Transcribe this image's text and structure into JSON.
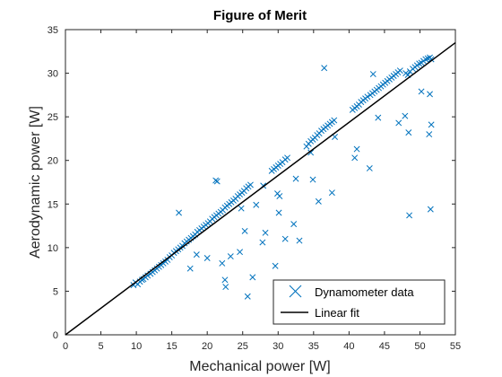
{
  "chart_data": {
    "type": "scatter",
    "title": "Figure of Merit",
    "xlabel": "Mechanical power [W]",
    "ylabel": "Aerodynamic power [W]",
    "xlim": [
      0,
      55
    ],
    "ylim": [
      0,
      35
    ],
    "xticks": [
      "0",
      "5",
      "10",
      "15",
      "20",
      "25",
      "30",
      "35",
      "40",
      "45",
      "50",
      "55"
    ],
    "yticks": [
      "0",
      "5",
      "10",
      "15",
      "20",
      "25",
      "30",
      "35"
    ],
    "grid": false,
    "legend_position": "bottom-right",
    "colors": {
      "scatter": "#0072BD",
      "fit": "#000000",
      "axes": "#262626"
    },
    "series": [
      {
        "name": "Dynamometer data",
        "type": "scatter",
        "marker": "x",
        "points": [
          [
            9.6,
            5.7
          ],
          [
            9.9,
            6.0
          ],
          [
            10.2,
            5.8
          ],
          [
            10.5,
            6.1
          ],
          [
            10.8,
            6.3
          ],
          [
            11.0,
            6.4
          ],
          [
            11.3,
            6.6
          ],
          [
            11.6,
            6.8
          ],
          [
            12.0,
            7.0
          ],
          [
            12.3,
            7.2
          ],
          [
            12.6,
            7.4
          ],
          [
            12.9,
            7.6
          ],
          [
            13.2,
            7.8
          ],
          [
            13.5,
            8.0
          ],
          [
            13.8,
            8.2
          ],
          [
            14.1,
            8.4
          ],
          [
            14.4,
            8.6
          ],
          [
            14.7,
            8.9
          ],
          [
            15.0,
            9.1
          ],
          [
            15.3,
            9.4
          ],
          [
            15.6,
            9.6
          ],
          [
            15.9,
            9.8
          ],
          [
            16.2,
            10.0
          ],
          [
            16.5,
            10.2
          ],
          [
            16.8,
            10.5
          ],
          [
            17.1,
            10.7
          ],
          [
            17.4,
            10.9
          ],
          [
            17.7,
            11.1
          ],
          [
            18.0,
            11.3
          ],
          [
            18.3,
            11.5
          ],
          [
            18.6,
            11.8
          ],
          [
            18.9,
            12.0
          ],
          [
            19.2,
            12.2
          ],
          [
            19.5,
            12.4
          ],
          [
            19.8,
            12.6
          ],
          [
            20.1,
            12.8
          ],
          [
            20.4,
            13.0
          ],
          [
            20.7,
            13.3
          ],
          [
            21.0,
            13.5
          ],
          [
            21.3,
            13.7
          ],
          [
            21.6,
            13.9
          ],
          [
            21.9,
            14.1
          ],
          [
            22.2,
            14.3
          ],
          [
            22.5,
            14.6
          ],
          [
            22.8,
            14.8
          ],
          [
            23.1,
            15.0
          ],
          [
            23.4,
            15.2
          ],
          [
            23.7,
            15.4
          ],
          [
            24.0,
            15.6
          ],
          [
            24.3,
            15.9
          ],
          [
            24.6,
            16.1
          ],
          [
            24.9,
            16.3
          ],
          [
            25.2,
            16.5
          ],
          [
            25.5,
            16.8
          ],
          [
            25.8,
            17.0
          ],
          [
            26.1,
            17.2
          ],
          [
            29.1,
            18.8
          ],
          [
            29.4,
            19.0
          ],
          [
            29.7,
            19.2
          ],
          [
            30.0,
            19.4
          ],
          [
            30.3,
            19.6
          ],
          [
            30.6,
            19.8
          ],
          [
            31.0,
            20.1
          ],
          [
            31.3,
            20.3
          ],
          [
            34.0,
            21.6
          ],
          [
            34.3,
            21.9
          ],
          [
            34.6,
            22.2
          ],
          [
            34.9,
            22.4
          ],
          [
            35.2,
            22.6
          ],
          [
            35.5,
            22.9
          ],
          [
            35.8,
            23.1
          ],
          [
            36.1,
            23.4
          ],
          [
            36.4,
            23.6
          ],
          [
            36.7,
            23.8
          ],
          [
            37.0,
            24.0
          ],
          [
            37.3,
            24.2
          ],
          [
            37.6,
            24.4
          ],
          [
            37.9,
            24.6
          ],
          [
            40.5,
            25.8
          ],
          [
            40.8,
            26.0
          ],
          [
            41.1,
            26.2
          ],
          [
            41.4,
            26.4
          ],
          [
            41.7,
            26.7
          ],
          [
            42.0,
            26.9
          ],
          [
            42.3,
            27.1
          ],
          [
            42.6,
            27.3
          ],
          [
            43.0,
            27.5
          ],
          [
            43.3,
            27.7
          ],
          [
            43.6,
            27.9
          ],
          [
            43.9,
            28.1
          ],
          [
            44.2,
            28.3
          ],
          [
            44.5,
            28.5
          ],
          [
            44.8,
            28.7
          ],
          [
            45.1,
            28.9
          ],
          [
            45.4,
            29.1
          ],
          [
            45.7,
            29.3
          ],
          [
            46.0,
            29.5
          ],
          [
            46.3,
            29.7
          ],
          [
            46.6,
            29.9
          ],
          [
            46.9,
            30.1
          ],
          [
            47.2,
            30.3
          ],
          [
            48.0,
            30.0
          ],
          [
            48.3,
            29.8
          ],
          [
            48.6,
            30.2
          ],
          [
            49.0,
            30.5
          ],
          [
            49.3,
            30.7
          ],
          [
            49.6,
            30.9
          ],
          [
            49.9,
            31.1
          ],
          [
            50.2,
            31.2
          ],
          [
            50.5,
            31.4
          ],
          [
            50.8,
            31.6
          ],
          [
            51.1,
            31.7
          ],
          [
            51.4,
            31.8
          ],
          [
            51.6,
            31.6
          ],
          [
            16.0,
            14.0
          ],
          [
            21.2,
            17.7
          ],
          [
            21.4,
            17.6
          ],
          [
            27.9,
            17.1
          ],
          [
            29.9,
            16.2
          ],
          [
            30.2,
            15.9
          ],
          [
            36.5,
            30.6
          ],
          [
            43.4,
            29.9
          ],
          [
            41.1,
            21.3
          ],
          [
            40.8,
            20.3
          ],
          [
            42.9,
            19.1
          ],
          [
            37.6,
            16.3
          ],
          [
            35.7,
            15.3
          ],
          [
            30.1,
            14.0
          ],
          [
            34.9,
            17.8
          ],
          [
            32.5,
            17.9
          ],
          [
            26.9,
            14.9
          ],
          [
            24.8,
            14.5
          ],
          [
            25.3,
            11.9
          ],
          [
            28.2,
            11.7
          ],
          [
            27.8,
            10.6
          ],
          [
            33.0,
            10.8
          ],
          [
            24.6,
            9.5
          ],
          [
            22.1,
            8.2
          ],
          [
            23.3,
            9.0
          ],
          [
            17.6,
            7.6
          ],
          [
            18.5,
            9.2
          ],
          [
            20.0,
            8.8
          ],
          [
            22.5,
            6.3
          ],
          [
            22.6,
            5.5
          ],
          [
            26.4,
            6.6
          ],
          [
            25.7,
            4.4
          ],
          [
            29.6,
            7.9
          ],
          [
            31.0,
            11.0
          ],
          [
            32.2,
            12.7
          ],
          [
            48.5,
            13.7
          ],
          [
            51.5,
            14.4
          ],
          [
            51.3,
            23.0
          ],
          [
            51.6,
            24.1
          ],
          [
            48.4,
            23.2
          ],
          [
            47.9,
            25.1
          ],
          [
            50.2,
            27.9
          ],
          [
            51.4,
            27.6
          ],
          [
            47.0,
            24.3
          ],
          [
            44.1,
            24.9
          ],
          [
            38.0,
            22.7
          ],
          [
            34.6,
            20.9
          ]
        ]
      },
      {
        "name": "Linear fit",
        "type": "line",
        "x": [
          0,
          55
        ],
        "y": [
          0,
          33.5
        ]
      }
    ]
  }
}
